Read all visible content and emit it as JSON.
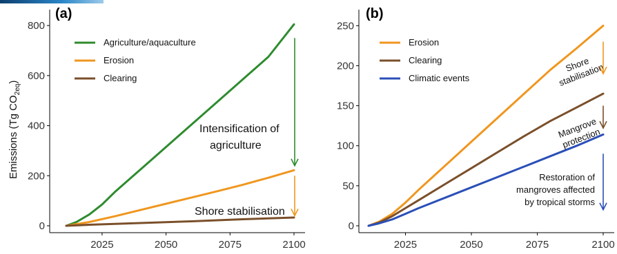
{
  "chart_data": [
    {
      "panel": "(a)",
      "type": "line",
      "ylabel": "Emissions (Tg CO2eq)",
      "ylabel_main": "Emissions (Tg CO",
      "ylabel_sub": "2eq",
      "ylabel_close": ")",
      "xlim": [
        2011,
        2100
      ],
      "ylim": [
        0,
        820
      ],
      "xticks": [
        2025,
        2050,
        2075,
        2100
      ],
      "yticks": [
        0,
        200,
        400,
        600,
        800
      ],
      "legend_position": "top-left",
      "series": [
        {
          "name": "Agriculture/aquaculture",
          "color": "#2e8b2e",
          "x": [
            2011,
            2015,
            2020,
            2025,
            2030,
            2040,
            2050,
            2060,
            2070,
            2080,
            2090,
            2100
          ],
          "y": [
            0,
            15,
            45,
            85,
            135,
            225,
            315,
            405,
            495,
            585,
            675,
            805
          ]
        },
        {
          "name": "Erosion",
          "color": "#f0961e",
          "x": [
            2011,
            2020,
            2030,
            2040,
            2050,
            2060,
            2070,
            2080,
            2090,
            2100
          ],
          "y": [
            0,
            15,
            38,
            63,
            88,
            113,
            138,
            164,
            192,
            222
          ]
        },
        {
          "name": "Clearing",
          "color": "#7a4f2a",
          "x": [
            2011,
            2020,
            2040,
            2060,
            2080,
            2100
          ],
          "y": [
            0,
            4,
            11,
            18,
            26,
            33
          ]
        }
      ],
      "annotations": [
        {
          "lines": [
            "Intensification of",
            "agriculture"
          ],
          "arrow_color": "#2e8b2e",
          "from": 750,
          "to": 240
        },
        {
          "lines": [
            "Shore stabilisation"
          ],
          "arrow_color": "#f0961e",
          "from": 200,
          "to": 40
        }
      ]
    },
    {
      "panel": "(b)",
      "type": "line",
      "xlim": [
        2011,
        2100
      ],
      "ylim": [
        0,
        255
      ],
      "xticks": [
        2025,
        2050,
        2075,
        2100
      ],
      "yticks": [
        0,
        50,
        100,
        150,
        200,
        250
      ],
      "legend_position": "top-left",
      "series": [
        {
          "name": "Erosion",
          "color": "#f0961e",
          "x": [
            2011,
            2015,
            2020,
            2025,
            2030,
            2040,
            2050,
            2060,
            2070,
            2080,
            2090,
            2100
          ],
          "y": [
            0,
            5,
            15,
            29,
            45,
            75,
            105,
            135,
            165,
            195,
            222,
            250
          ]
        },
        {
          "name": "Clearing",
          "color": "#7a4f2a",
          "x": [
            2011,
            2015,
            2020,
            2025,
            2030,
            2040,
            2050,
            2060,
            2070,
            2080,
            2090,
            2100
          ],
          "y": [
            0,
            4,
            12,
            22,
            32,
            52,
            72,
            92,
            112,
            131,
            148,
            165
          ]
        },
        {
          "name": "Climatic events",
          "color": "#2a4fb8",
          "x": [
            2011,
            2015,
            2020,
            2025,
            2030,
            2040,
            2050,
            2060,
            2070,
            2080,
            2090,
            2100
          ],
          "y": [
            0,
            3,
            8,
            15,
            22,
            35,
            48,
            61,
            74,
            87,
            100,
            114
          ]
        }
      ],
      "annotations": [
        {
          "lines": [
            "Shore",
            "stabilisation"
          ],
          "arrow_color": "#f0961e",
          "from": 230,
          "to": 190
        },
        {
          "lines": [
            "Mangrove",
            "protection"
          ],
          "arrow_color": "#7a4f2a",
          "from": 150,
          "to": 122
        },
        {
          "lines": [
            "Restoration of",
            "mangroves affected",
            "by tropical storms"
          ],
          "arrow_color": "#2a4fb8",
          "from": 90,
          "to": 20
        }
      ]
    }
  ]
}
